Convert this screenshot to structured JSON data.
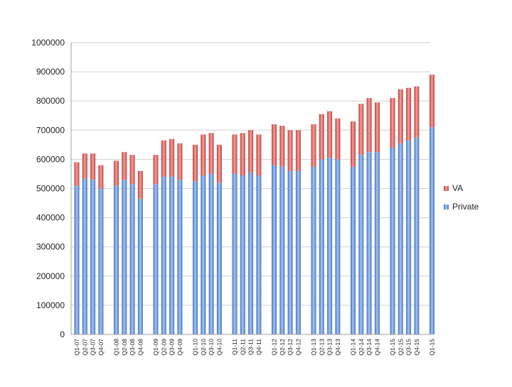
{
  "chart_data": {
    "type": "bar",
    "stacked": true,
    "title": "",
    "xlabel": "",
    "ylabel": "",
    "ylim": [
      0,
      1000000
    ],
    "yticks": [
      0,
      100000,
      200000,
      300000,
      400000,
      500000,
      600000,
      700000,
      800000,
      900000,
      1000000
    ],
    "grid": "horizontal",
    "legend_position": "right",
    "categories": [
      "Q1-07",
      "Q2-07",
      "Q3-07",
      "Q4-07",
      "Q1-08",
      "Q2-08",
      "Q3-08",
      "Q4-08",
      "Q1-09",
      "Q2-09",
      "Q3-09",
      "Q4-09",
      "Q1-10",
      "Q2-10",
      "Q3-10",
      "Q4-10",
      "Q1-11",
      "Q2-11",
      "Q3-11",
      "Q4-11",
      "Q1-12",
      "Q2-12",
      "Q3-12",
      "Q4-12",
      "Q1-13",
      "Q2-13",
      "Q3-13",
      "Q4-13",
      "Q1-14",
      "Q2-14",
      "Q3-14",
      "Q4-14",
      "Q1-15",
      "Q2-15",
      "Q3-15",
      "Q4-15",
      "Q1-15"
    ],
    "series": [
      {
        "name": "Private",
        "color": "#5b8ed6",
        "values": [
          510000,
          535000,
          530000,
          500000,
          510000,
          530000,
          515000,
          465000,
          515000,
          540000,
          540000,
          530000,
          525000,
          545000,
          550000,
          520000,
          550000,
          545000,
          555000,
          545000,
          580000,
          575000,
          560000,
          560000,
          575000,
          600000,
          605000,
          600000,
          575000,
          615000,
          625000,
          625000,
          640000,
          655000,
          665000,
          675000,
          710000
        ]
      },
      {
        "name": "VA",
        "color": "#d9534f",
        "values": [
          80000,
          85000,
          90000,
          80000,
          85000,
          95000,
          100000,
          95000,
          100000,
          125000,
          130000,
          125000,
          125000,
          140000,
          140000,
          130000,
          135000,
          145000,
          145000,
          140000,
          140000,
          140000,
          140000,
          140000,
          145000,
          155000,
          160000,
          140000,
          155000,
          175000,
          185000,
          170000,
          170000,
          185000,
          180000,
          175000,
          180000
        ]
      }
    ]
  }
}
